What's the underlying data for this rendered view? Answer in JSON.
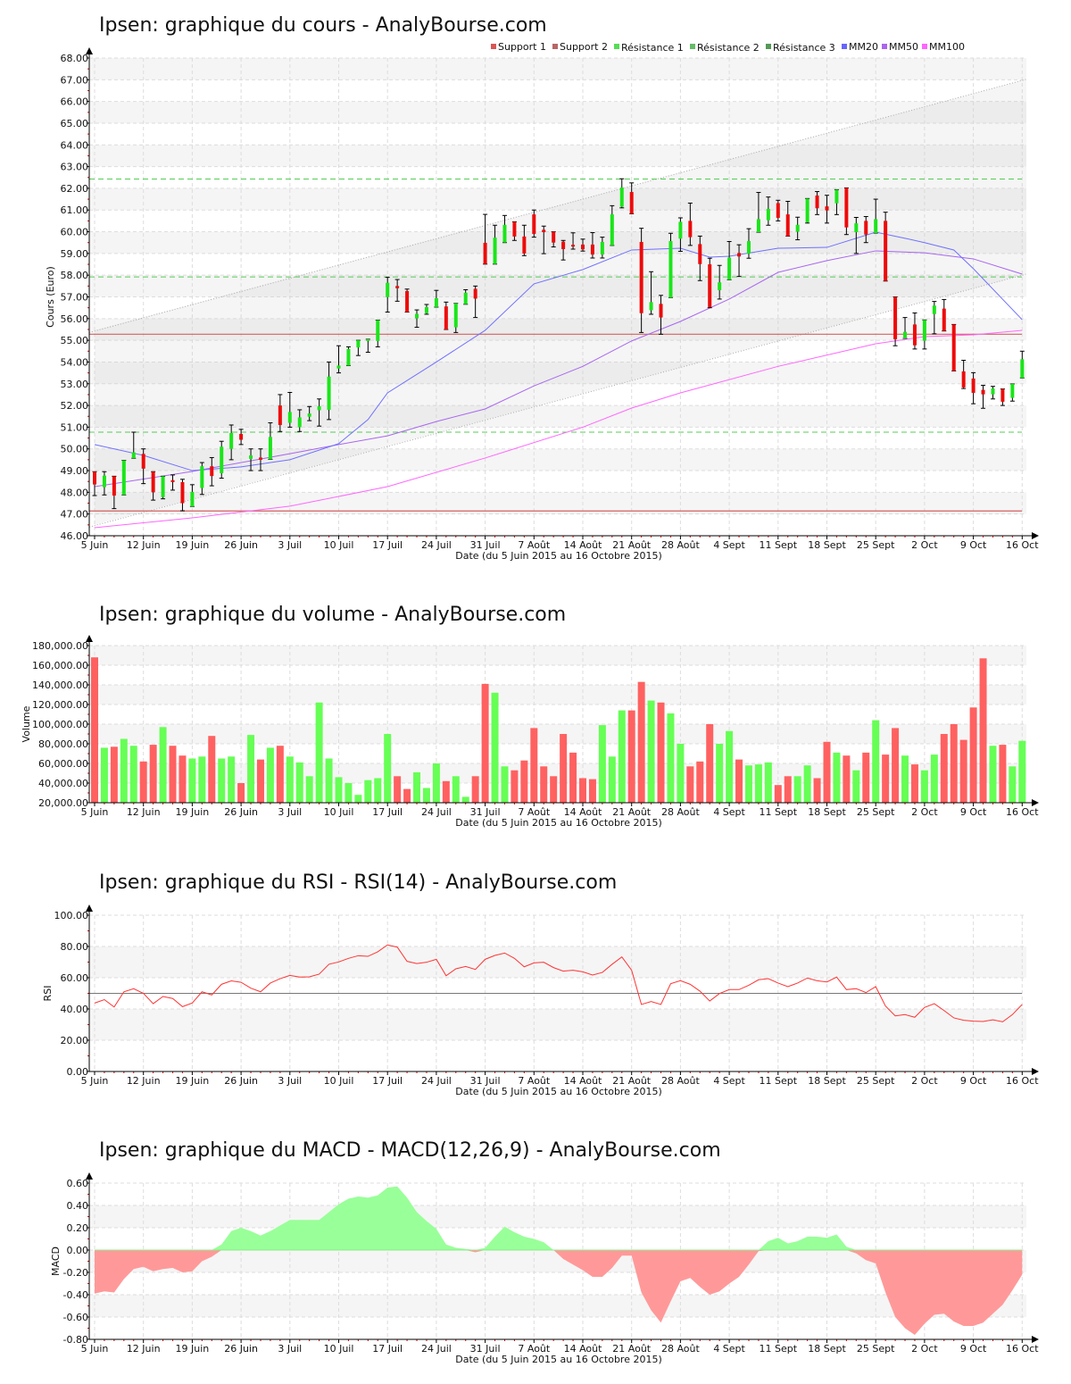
{
  "x_ticks": [
    "5 Juin",
    "12 Juin",
    "19 Juin",
    "26 Juin",
    "3 Juil",
    "10 Juil",
    "17 Juil",
    "24 Juil",
    "31 Juil",
    "7 Août",
    "14 Août",
    "21 Août",
    "28 Août",
    "4 Sept",
    "11 Sept",
    "18 Sept",
    "25 Sept",
    "2 Oct",
    "9 Oct",
    "16 Oct"
  ],
  "x_label": "Date (du 5 Juin 2015 au 16 Octobre 2015)",
  "colors": {
    "up": "#19e619",
    "down": "#ee0a0a",
    "vol_up": "#66ff55",
    "vol_down": "#ff6161",
    "macd_pos": "#99ff99",
    "macd_neg": "#ff9999",
    "rsi": "#ff3333",
    "support": "#d46060",
    "resistance": "#55cc55",
    "mm20": "#7070ff",
    "mm50": "#a866f0",
    "mm100": "#ff66ff",
    "channel": "#aaaaaa"
  },
  "chart_data": [
    {
      "type": "candlestick",
      "title": "Ipsen: graphique du cours - AnalyBourse.com",
      "ylabel": "Cours (Euro)",
      "ylim": [
        46,
        68
      ],
      "ytick_labels": [
        "46.00",
        "47.00",
        "48.00",
        "49.00",
        "50.00",
        "51.00",
        "52.00",
        "53.00",
        "54.00",
        "55.00",
        "56.00",
        "57.00",
        "58.00",
        "59.00",
        "60.00",
        "61.00",
        "62.00",
        "63.00",
        "64.00",
        "65.00",
        "66.00",
        "67.00",
        "68.00"
      ],
      "legend": [
        {
          "label": "Support 1",
          "color": "#d95555"
        },
        {
          "label": "Support 2",
          "color": "#b86666"
        },
        {
          "label": "Résistance 1",
          "color": "#55dd55"
        },
        {
          "label": "Résistance 2",
          "color": "#66bb66"
        },
        {
          "label": "Résistance 3",
          "color": "#559955"
        },
        {
          "label": "MM20",
          "color": "#6666ff"
        },
        {
          "label": "MM50",
          "color": "#aa66ee"
        },
        {
          "label": "MM100",
          "color": "#ff66ff"
        }
      ],
      "supports": [
        55.28,
        47.14
      ],
      "resistances": [
        62.43,
        57.92,
        50.77
      ],
      "trend_channel": {
        "upper": [
          [
            0,
            55.46
          ],
          [
            95,
            66.97
          ]
        ],
        "lower": [
          [
            0,
            46.5
          ],
          [
            95,
            58.0
          ]
        ]
      },
      "ohlc": [
        [
          48.95,
          48.95,
          47.85,
          48.36
        ],
        [
          48.24,
          48.95,
          47.88,
          48.77
        ],
        [
          48.74,
          48.74,
          47.25,
          47.85
        ],
        [
          47.88,
          49.47,
          47.88,
          49.47
        ],
        [
          49.57,
          50.77,
          49.57,
          49.84
        ],
        [
          49.77,
          50.0,
          48.4,
          49.09
        ],
        [
          48.95,
          48.95,
          47.64,
          48.0
        ],
        [
          47.78,
          48.74,
          47.7,
          48.74
        ],
        [
          48.56,
          48.8,
          48.1,
          48.47
        ],
        [
          48.47,
          48.6,
          47.15,
          47.5
        ],
        [
          47.35,
          48.35,
          47.35,
          48.02
        ],
        [
          48.2,
          49.37,
          47.9,
          49.2
        ],
        [
          49.2,
          49.6,
          48.3,
          48.75
        ],
        [
          48.88,
          50.35,
          48.65,
          50.1
        ],
        [
          50.0,
          51.1,
          49.5,
          50.73
        ],
        [
          50.69,
          50.9,
          50.2,
          50.42
        ],
        [
          49.54,
          50.0,
          49.0,
          49.7
        ],
        [
          49.6,
          50.0,
          49.0,
          49.5
        ],
        [
          49.52,
          51.2,
          49.52,
          50.55
        ],
        [
          52.0,
          52.5,
          50.8,
          51.1
        ],
        [
          51.2,
          52.6,
          51.0,
          51.7
        ],
        [
          51.0,
          51.8,
          50.8,
          51.45
        ],
        [
          51.48,
          51.95,
          51.3,
          51.63
        ],
        [
          51.78,
          52.3,
          51.05,
          51.96
        ],
        [
          51.8,
          54.0,
          51.35,
          53.33
        ],
        [
          53.7,
          54.75,
          53.5,
          53.84
        ],
        [
          53.84,
          54.7,
          53.84,
          54.6
        ],
        [
          54.67,
          55.0,
          54.3,
          55.0
        ],
        [
          55.0,
          55.05,
          54.45,
          55.05
        ],
        [
          54.97,
          55.93,
          54.7,
          55.93
        ],
        [
          56.99,
          57.9,
          56.3,
          57.65
        ],
        [
          57.5,
          57.8,
          56.8,
          57.4
        ],
        [
          57.27,
          57.36,
          56.3,
          56.3
        ],
        [
          56.01,
          56.4,
          55.6,
          56.22
        ],
        [
          56.25,
          56.65,
          56.2,
          56.53
        ],
        [
          56.53,
          57.3,
          56.53,
          56.94
        ],
        [
          56.56,
          56.76,
          55.5,
          55.5
        ],
        [
          55.6,
          56.7,
          55.36,
          56.7
        ],
        [
          56.66,
          57.33,
          56.66,
          57.19
        ],
        [
          57.37,
          57.5,
          56.05,
          56.92
        ],
        [
          59.49,
          60.8,
          58.51,
          58.51
        ],
        [
          58.51,
          60.3,
          58.51,
          59.73
        ],
        [
          59.5,
          60.75,
          59.5,
          60.32
        ],
        [
          60.46,
          60.46,
          59.6,
          59.78
        ],
        [
          59.78,
          60.3,
          58.9,
          59.0
        ],
        [
          60.8,
          61.0,
          59.75,
          59.9
        ],
        [
          60.09,
          60.26,
          58.99,
          59.98
        ],
        [
          60.0,
          60.0,
          59.3,
          59.5
        ],
        [
          59.54,
          59.6,
          58.7,
          59.2
        ],
        [
          59.4,
          59.95,
          59.2,
          59.32
        ],
        [
          59.41,
          59.66,
          59.11,
          59.19
        ],
        [
          59.41,
          59.96,
          58.79,
          58.95
        ],
        [
          58.95,
          59.75,
          58.79,
          59.53
        ],
        [
          59.37,
          61.2,
          59.37,
          60.8
        ],
        [
          61.15,
          62.44,
          61.1,
          62.04
        ],
        [
          61.83,
          62.25,
          60.83,
          60.83
        ],
        [
          59.53,
          60.16,
          55.36,
          56.25
        ],
        [
          56.38,
          58.16,
          56.2,
          56.76
        ],
        [
          56.68,
          57.07,
          55.28,
          56.05
        ],
        [
          56.97,
          59.93,
          56.97,
          59.57
        ],
        [
          59.68,
          60.64,
          59.1,
          60.46
        ],
        [
          60.5,
          61.32,
          59.37,
          59.75
        ],
        [
          59.43,
          59.8,
          57.75,
          58.51
        ],
        [
          58.5,
          58.78,
          56.5,
          56.53
        ],
        [
          57.31,
          58.45,
          56.9,
          57.67
        ],
        [
          57.79,
          59.55,
          57.79,
          58.81
        ],
        [
          59.02,
          59.4,
          57.94,
          58.86
        ],
        [
          58.99,
          60.14,
          58.78,
          59.57
        ],
        [
          59.98,
          61.81,
          59.98,
          60.58
        ],
        [
          60.53,
          61.6,
          60.3,
          61.05
        ],
        [
          61.32,
          61.45,
          60.5,
          60.64
        ],
        [
          60.8,
          61.4,
          59.8,
          59.8
        ],
        [
          60.0,
          60.67,
          59.63,
          60.32
        ],
        [
          60.43,
          61.53,
          60.4,
          61.53
        ],
        [
          61.67,
          61.85,
          60.79,
          61.08
        ],
        [
          61.17,
          61.68,
          60.4,
          60.98
        ],
        [
          61.31,
          61.94,
          60.79,
          61.94
        ],
        [
          62.02,
          62.02,
          59.87,
          60.2
        ],
        [
          59.98,
          60.66,
          59.0,
          60.39
        ],
        [
          60.5,
          60.7,
          59.5,
          59.87
        ],
        [
          59.94,
          61.5,
          59.94,
          60.58
        ],
        [
          60.5,
          60.9,
          57.73,
          57.73
        ],
        [
          57.0,
          57.0,
          54.75,
          55.05
        ],
        [
          55.09,
          56.05,
          55.09,
          55.39
        ],
        [
          55.73,
          56.26,
          54.6,
          54.77
        ],
        [
          54.98,
          55.94,
          54.6,
          55.94
        ],
        [
          56.21,
          56.79,
          55.3,
          56.6
        ],
        [
          56.46,
          56.88,
          55.43,
          55.43
        ],
        [
          55.73,
          55.73,
          53.59,
          53.59
        ],
        [
          53.57,
          54.08,
          52.78,
          52.83
        ],
        [
          53.24,
          53.51,
          52.08,
          52.58
        ],
        [
          52.72,
          52.93,
          51.87,
          52.51
        ],
        [
          52.51,
          52.88,
          52.3,
          52.78
        ],
        [
          52.76,
          52.76,
          52.0,
          52.17
        ],
        [
          52.35,
          52.99,
          52.2,
          52.99
        ],
        [
          53.27,
          54.5,
          53.27,
          54.13
        ]
      ],
      "mm20": [
        [
          0,
          50.2
        ],
        [
          5,
          49.7
        ],
        [
          10,
          49.0
        ],
        [
          15,
          49.17
        ],
        [
          20,
          49.5
        ],
        [
          25,
          50.24
        ],
        [
          28,
          51.35
        ],
        [
          30,
          52.58
        ],
        [
          35,
          54.0
        ],
        [
          40,
          55.46
        ],
        [
          45,
          57.6
        ],
        [
          50,
          58.26
        ],
        [
          55,
          59.16
        ],
        [
          60,
          59.24
        ],
        [
          63,
          58.83
        ],
        [
          65,
          58.87
        ],
        [
          70,
          59.24
        ],
        [
          75,
          59.28
        ],
        [
          80,
          59.98
        ],
        [
          83,
          59.7
        ],
        [
          85,
          59.5
        ],
        [
          88,
          59.16
        ],
        [
          90,
          58.3
        ],
        [
          95,
          55.95
        ]
      ],
      "mm50": [
        [
          0,
          48.26
        ],
        [
          10,
          48.96
        ],
        [
          20,
          49.78
        ],
        [
          25,
          50.2
        ],
        [
          30,
          50.6
        ],
        [
          35,
          51.26
        ],
        [
          40,
          51.84
        ],
        [
          45,
          52.9
        ],
        [
          50,
          53.8
        ],
        [
          55,
          54.97
        ],
        [
          60,
          55.87
        ],
        [
          65,
          56.9
        ],
        [
          70,
          58.13
        ],
        [
          75,
          58.67
        ],
        [
          80,
          59.12
        ],
        [
          85,
          59.03
        ],
        [
          90,
          58.75
        ],
        [
          95,
          58.05
        ]
      ],
      "mm100": [
        [
          0,
          46.37
        ],
        [
          10,
          46.82
        ],
        [
          20,
          47.36
        ],
        [
          30,
          48.26
        ],
        [
          40,
          49.58
        ],
        [
          50,
          51.0
        ],
        [
          55,
          51.88
        ],
        [
          60,
          52.58
        ],
        [
          70,
          53.8
        ],
        [
          80,
          54.84
        ],
        [
          85,
          55.17
        ],
        [
          90,
          55.25
        ],
        [
          95,
          55.46
        ]
      ]
    },
    {
      "type": "bar",
      "title": "Ipsen: graphique du volume - AnalyBourse.com",
      "ylabel": "Volume",
      "ylim": [
        20000,
        180000
      ],
      "ytick_labels": [
        "20,000.00",
        "40,000.00",
        "60,000.00",
        "80,000.00",
        "100,000.00",
        "120,000.00",
        "140,000.00",
        "160,000.00",
        "180,000.00"
      ],
      "values": [
        168000,
        76000,
        77000,
        85000,
        78000,
        62000,
        79000,
        97000,
        78000,
        68000,
        65000,
        67000,
        88000,
        65000,
        67000,
        40000,
        89000,
        64000,
        76000,
        78000,
        67000,
        61000,
        47000,
        122000,
        65000,
        46000,
        40000,
        28000,
        43000,
        45000,
        90000,
        47000,
        34000,
        51000,
        35000,
        60000,
        42000,
        47000,
        26000,
        47000,
        141000,
        132000,
        57000,
        53000,
        63000,
        96000,
        57000,
        47000,
        90000,
        71000,
        45000,
        44000,
        99000,
        67000,
        114000,
        114000,
        143000,
        124000,
        122000,
        111000,
        80000,
        57000,
        62000,
        100000,
        80000,
        93000,
        64000,
        58000,
        59000,
        61000,
        38000,
        47000,
        47000,
        58000,
        45000,
        82000,
        71000,
        68000,
        53000,
        71000,
        104000,
        69000,
        96000,
        68000,
        59000,
        53000,
        69000,
        90000,
        100000,
        84000,
        117000,
        167000,
        78000,
        79000,
        57000,
        83000
      ]
    },
    {
      "type": "line",
      "title": "Ipsen: graphique du RSI - RSI(14) - AnalyBourse.com",
      "ylabel": "RSI",
      "ylim": [
        0,
        100
      ],
      "reference_line": 50,
      "ytick_labels": [
        "0.00",
        "20.00",
        "40.00",
        "60.00",
        "80.00",
        "100.00"
      ],
      "values": [
        43.8,
        46,
        41.3,
        51,
        53,
        50,
        43.4,
        48,
        46.7,
        41.5,
        43.8,
        51,
        49,
        55.8,
        58,
        57.1,
        53.3,
        51,
        56.6,
        59.4,
        61.5,
        60.4,
        60.6,
        62.3,
        68.6,
        70.1,
        72.4,
        74.1,
        73.7,
        76.6,
        81,
        79.6,
        70.5,
        69.1,
        69.9,
        71.8,
        61.3,
        65.7,
        67.2,
        65.3,
        71.8,
        74.3,
        75.8,
        72.4,
        67,
        69.5,
        69.9,
        66.5,
        64.2,
        64.8,
        63.8,
        61.7,
        63.4,
        68.6,
        73.3,
        64.8,
        42.9,
        44.8,
        42.9,
        56.2,
        58.1,
        55.8,
        51.4,
        45.1,
        49.9,
        52.4,
        52.4,
        55.2,
        58.7,
        59.4,
        56.6,
        54.3,
        56.6,
        59.8,
        58.1,
        57.3,
        60.4,
        52.4,
        53,
        50.5,
        54.3,
        41.9,
        35.6,
        36.4,
        34.7,
        41,
        43.4,
        39,
        34.3,
        32.8,
        32.2,
        32,
        33.1,
        31.8,
        36.4,
        42.9
      ]
    },
    {
      "type": "area",
      "title": "Ipsen: graphique du MACD - MACD(12,26,9) - AnalyBourse.com",
      "ylabel": "MACD",
      "ylim": [
        -0.8,
        0.6
      ],
      "ytick_labels": [
        "-0.80",
        "-0.60",
        "-0.40",
        "-0.20",
        "0.00",
        "0.20",
        "0.40",
        "0.60"
      ],
      "values": [
        -0.39,
        -0.37,
        -0.38,
        -0.26,
        -0.17,
        -0.15,
        -0.19,
        -0.17,
        -0.16,
        -0.2,
        -0.19,
        -0.1,
        -0.06,
        0.05,
        0.17,
        0.2,
        0.17,
        0.13,
        0.17,
        0.22,
        0.27,
        0.27,
        0.27,
        0.27,
        0.34,
        0.41,
        0.46,
        0.48,
        0.47,
        0.49,
        0.56,
        0.57,
        0.47,
        0.34,
        0.26,
        0.19,
        0.05,
        0.02,
        0.01,
        -0.02,
        0.02,
        0.12,
        0.21,
        0.16,
        0.12,
        0.1,
        0.07,
        0.0,
        -0.08,
        -0.13,
        -0.18,
        -0.24,
        -0.24,
        -0.16,
        -0.05,
        -0.05,
        -0.38,
        -0.54,
        -0.65,
        -0.46,
        -0.28,
        -0.25,
        -0.33,
        -0.4,
        -0.37,
        -0.3,
        -0.24,
        -0.13,
        -0.01,
        0.08,
        0.11,
        0.06,
        0.08,
        0.12,
        0.12,
        0.11,
        0.14,
        0.03,
        -0.03,
        -0.09,
        -0.12,
        -0.38,
        -0.6,
        -0.7,
        -0.76,
        -0.66,
        -0.58,
        -0.57,
        -0.64,
        -0.68,
        -0.68,
        -0.65,
        -0.57,
        -0.49,
        -0.36,
        -0.22
      ]
    }
  ]
}
